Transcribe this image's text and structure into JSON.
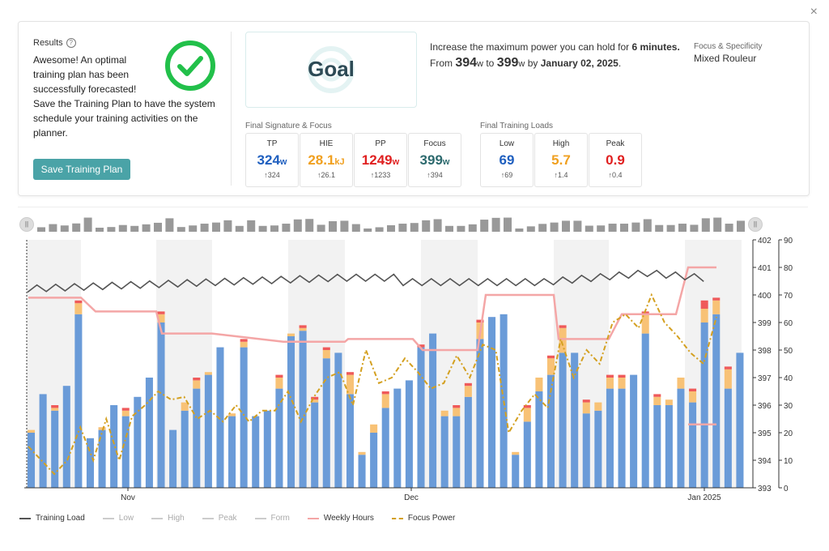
{
  "close_glyph": "×",
  "results": {
    "title": "Results",
    "help_glyph": "?",
    "lines": [
      "Awesome! An optimal",
      "training plan has been",
      "successfully forecasted!",
      "Save the Training Plan to have the system",
      "schedule your training activities on the",
      "planner."
    ],
    "save_label": "Save Training Plan"
  },
  "goal": {
    "label": "Goal",
    "line1_prefix": "Increase the maximum power you can hold for ",
    "line1_bold": "6 minutes.",
    "from_word": "From",
    "from_value": "394",
    "unit": "w",
    "to_word": "to",
    "to_value": "399",
    "by_word": "by",
    "date": "January 02, 2025",
    "period": "."
  },
  "focus": {
    "label": "Focus & Specificity",
    "value": "Mixed Rouleur"
  },
  "signature": {
    "label": "Final Signature & Focus",
    "metrics": [
      {
        "name": "TP",
        "value": "324",
        "unit": "w",
        "sub": "↑324",
        "color": "#1f5fbf"
      },
      {
        "name": "HIE",
        "value": "28.1",
        "unit": "kJ",
        "sub": "↑26.1",
        "color": "#f0a020"
      },
      {
        "name": "PP",
        "value": "1249",
        "unit": "w",
        "sub": "↑1233",
        "color": "#e02020"
      },
      {
        "name": "Focus",
        "value": "399",
        "unit": "w",
        "sub": "↑394",
        "color": "#2d6a6e"
      }
    ]
  },
  "loads": {
    "label": "Final Training Loads",
    "metrics": [
      {
        "name": "Low",
        "value": "69",
        "sub": "↑69",
        "color": "#1f5fbf"
      },
      {
        "name": "High",
        "value": "5.7",
        "sub": "↑1.4",
        "color": "#f0a020"
      },
      {
        "name": "Peak",
        "value": "0.9",
        "sub": "↑0.4",
        "color": "#e02020"
      }
    ]
  },
  "navigator": {
    "handle_glyph": "||"
  },
  "legend": [
    {
      "label": "Training Load",
      "color": "#555555",
      "active": true
    },
    {
      "label": "Low",
      "color": "#cccccc",
      "active": false
    },
    {
      "label": "High",
      "color": "#cccccc",
      "active": false
    },
    {
      "label": "Peak",
      "color": "#cccccc",
      "active": false
    },
    {
      "label": "Form",
      "color": "#cccccc",
      "active": false
    },
    {
      "label": "Weekly Hours",
      "color": "#f4a6a6",
      "active": true
    },
    {
      "label": "Focus Power",
      "color": "#d4a020",
      "active": true
    }
  ],
  "chart_data": {
    "type": "bar",
    "x_labels": [
      "Nov",
      "Dec",
      "Jan 2025"
    ],
    "y_left": {
      "ticks": [
        "402",
        "401",
        "400",
        "399",
        "398",
        "397",
        "396",
        "395",
        "394",
        "393"
      ],
      "range": [
        393,
        402
      ]
    },
    "y_right": {
      "ticks": [
        "90",
        "80",
        "70",
        "60",
        "50",
        "40",
        "30",
        "20",
        "10",
        "0"
      ],
      "range": [
        0,
        90
      ]
    },
    "bars_low": [
      20,
      34,
      28,
      37,
      63,
      18,
      21,
      30,
      26,
      33,
      40,
      60,
      21,
      28,
      36,
      41,
      51,
      26,
      51,
      26,
      28,
      36,
      55,
      57,
      31,
      47,
      49,
      34,
      12,
      20,
      29,
      36,
      39,
      51,
      56,
      26,
      26,
      33,
      54,
      62,
      63,
      12,
      24,
      35,
      41,
      49,
      49,
      27,
      28,
      36,
      36,
      41,
      56,
      30,
      30,
      36,
      31,
      60,
      63,
      36,
      49
    ],
    "bars_high": [
      1,
      0,
      1,
      0,
      4,
      0,
      1,
      0,
      2,
      0,
      0,
      3,
      0,
      3,
      3,
      1,
      0,
      1,
      2,
      0,
      0,
      4,
      1,
      1,
      1,
      3,
      0,
      7,
      1,
      3,
      5,
      0,
      0,
      0,
      0,
      2,
      3,
      4,
      6,
      0,
      0,
      1,
      5,
      5,
      6,
      9,
      0,
      4,
      3,
      4,
      4,
      0,
      7,
      3,
      2,
      4,
      4,
      5,
      5,
      7,
      0
    ],
    "bars_peak": [
      0,
      0,
      1,
      0,
      1,
      0,
      0,
      0,
      1,
      0,
      0,
      1,
      0,
      0,
      1,
      0,
      0,
      0,
      1,
      0,
      0,
      1,
      0,
      1,
      1,
      1,
      0,
      1,
      0,
      0,
      1,
      0,
      0,
      1,
      0,
      0,
      1,
      1,
      1,
      0,
      0,
      0,
      1,
      0,
      1,
      1,
      0,
      1,
      0,
      1,
      1,
      0,
      1,
      1,
      0,
      0,
      1,
      3,
      1,
      1,
      0
    ],
    "weekly_hours": [
      399.9,
      399.9,
      399.4,
      399.4,
      398.6,
      398.6,
      398.3,
      398.3,
      398.4,
      398.4,
      398.0,
      398.0,
      400.0,
      400.0,
      398.4,
      398.4,
      399.3,
      399.3,
      401.0,
      401.0,
      395.3,
      395.3
    ],
    "focus_power": [
      15,
      10,
      5,
      10,
      22,
      10,
      25,
      10,
      26,
      30,
      35,
      32,
      33,
      25,
      28,
      24,
      30,
      24,
      28,
      28,
      35,
      24,
      33,
      40,
      42,
      30,
      50,
      38,
      40,
      47,
      42,
      36,
      38,
      48,
      40,
      52,
      50,
      20,
      28,
      34,
      29,
      54,
      40,
      50,
      45,
      60,
      63,
      58,
      70,
      60,
      55,
      49,
      45,
      62
    ]
  }
}
